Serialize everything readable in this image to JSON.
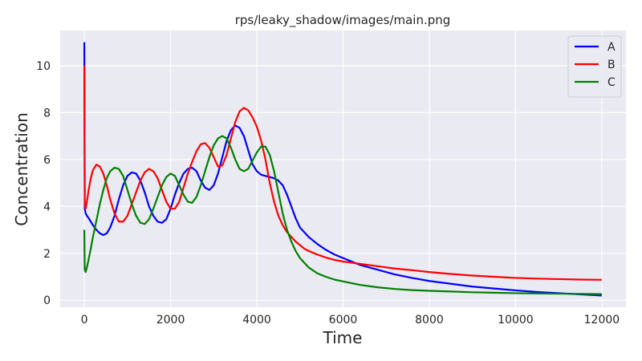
{
  "chart_data": {
    "type": "line",
    "title": "rps/leaky_shadow/images/main.png",
    "xlabel": "Time",
    "ylabel": "Concentration",
    "xlim": [
      -560,
      12560
    ],
    "ylim": [
      -0.3,
      11.5
    ],
    "xticks": [
      0,
      2000,
      4000,
      6000,
      8000,
      10000,
      12000
    ],
    "xtick_labels": [
      "0",
      "2000",
      "4000",
      "6000",
      "8000",
      "10000",
      "12000"
    ],
    "yticks": [
      0,
      2,
      4,
      6,
      8,
      10
    ],
    "ytick_labels": [
      "0",
      "2",
      "4",
      "6",
      "8",
      "10"
    ],
    "grid": true,
    "legend": "top-right",
    "series": [
      {
        "name": "A",
        "color": "#0000ff",
        "x": [
          0,
          10,
          30,
          60,
          100,
          150,
          200,
          280,
          360,
          440,
          520,
          600,
          700,
          800,
          900,
          1000,
          1100,
          1200,
          1300,
          1400,
          1500,
          1600,
          1700,
          1800,
          1900,
          2000,
          2100,
          2200,
          2300,
          2400,
          2500,
          2600,
          2700,
          2800,
          2900,
          3000,
          3100,
          3200,
          3300,
          3400,
          3500,
          3600,
          3700,
          3800,
          3850,
          3900,
          4000,
          4100,
          4200,
          4300,
          4400,
          4500,
          4600,
          4700,
          4800,
          4900,
          5000,
          5100,
          5200,
          5400,
          5600,
          5800,
          6000,
          6400,
          6800,
          7200,
          7600,
          8000,
          8500,
          9000,
          9500,
          10000,
          10500,
          11000,
          11500,
          12000
        ],
        "y": [
          11.0,
          3.9,
          3.7,
          3.6,
          3.5,
          3.35,
          3.2,
          3.0,
          2.85,
          2.78,
          2.85,
          3.1,
          3.6,
          4.3,
          4.9,
          5.3,
          5.45,
          5.4,
          5.1,
          4.6,
          4.0,
          3.6,
          3.35,
          3.3,
          3.45,
          3.9,
          4.5,
          5.0,
          5.4,
          5.6,
          5.65,
          5.5,
          5.1,
          4.8,
          4.7,
          4.9,
          5.4,
          6.1,
          6.8,
          7.25,
          7.45,
          7.35,
          7.0,
          6.4,
          6.1,
          5.8,
          5.5,
          5.35,
          5.3,
          5.25,
          5.2,
          5.1,
          4.9,
          4.5,
          4.0,
          3.5,
          3.1,
          2.9,
          2.7,
          2.4,
          2.15,
          1.95,
          1.8,
          1.5,
          1.3,
          1.1,
          0.95,
          0.82,
          0.7,
          0.58,
          0.5,
          0.42,
          0.35,
          0.3,
          0.25,
          0.2
        ]
      },
      {
        "name": "B",
        "color": "#ff0000",
        "x": [
          0,
          10,
          30,
          60,
          100,
          150,
          200,
          280,
          360,
          440,
          520,
          600,
          700,
          800,
          900,
          1000,
          1100,
          1200,
          1300,
          1400,
          1500,
          1600,
          1700,
          1800,
          1900,
          2000,
          2100,
          2200,
          2300,
          2400,
          2500,
          2600,
          2700,
          2800,
          2900,
          3000,
          3100,
          3200,
          3300,
          3400,
          3500,
          3600,
          3700,
          3800,
          3900,
          4000,
          4100,
          4200,
          4250,
          4300,
          4400,
          4500,
          4600,
          4700,
          4800,
          4900,
          5000,
          5100,
          5200,
          5400,
          5600,
          5800,
          6000,
          6400,
          6800,
          7200,
          7600,
          8000,
          8500,
          9000,
          9500,
          10000,
          10500,
          11000,
          11500,
          12000
        ],
        "y": [
          10.0,
          4.2,
          3.9,
          4.2,
          4.7,
          5.2,
          5.55,
          5.78,
          5.7,
          5.4,
          4.9,
          4.3,
          3.7,
          3.35,
          3.35,
          3.6,
          4.1,
          4.6,
          5.1,
          5.45,
          5.6,
          5.5,
          5.2,
          4.7,
          4.2,
          3.9,
          3.9,
          4.2,
          4.8,
          5.4,
          5.9,
          6.35,
          6.65,
          6.7,
          6.5,
          6.1,
          5.7,
          5.75,
          6.2,
          6.9,
          7.6,
          8.05,
          8.2,
          8.1,
          7.8,
          7.4,
          6.8,
          6.0,
          5.5,
          5.0,
          4.2,
          3.6,
          3.2,
          2.9,
          2.7,
          2.5,
          2.35,
          2.2,
          2.1,
          1.95,
          1.82,
          1.72,
          1.65,
          1.55,
          1.45,
          1.35,
          1.28,
          1.2,
          1.12,
          1.05,
          1.0,
          0.95,
          0.92,
          0.9,
          0.88,
          0.87
        ]
      },
      {
        "name": "C",
        "color": "#008000",
        "x": [
          0,
          10,
          30,
          60,
          100,
          150,
          200,
          280,
          360,
          440,
          520,
          600,
          700,
          800,
          900,
          1000,
          1100,
          1200,
          1300,
          1400,
          1500,
          1600,
          1700,
          1800,
          1900,
          2000,
          2100,
          2200,
          2300,
          2400,
          2500,
          2600,
          2700,
          2800,
          2900,
          3000,
          3100,
          3200,
          3300,
          3400,
          3500,
          3600,
          3700,
          3800,
          3900,
          4000,
          4100,
          4200,
          4300,
          4400,
          4500,
          4600,
          4700,
          4800,
          4900,
          5000,
          5100,
          5200,
          5400,
          5600,
          5800,
          6000,
          6400,
          6800,
          7200,
          7600,
          8000,
          8500,
          9000,
          9500,
          10000,
          10500,
          11000,
          11500,
          12000
        ],
        "y": [
          3.0,
          1.3,
          1.2,
          1.4,
          1.75,
          2.2,
          2.7,
          3.4,
          4.1,
          4.7,
          5.2,
          5.5,
          5.65,
          5.6,
          5.3,
          4.7,
          4.1,
          3.6,
          3.3,
          3.25,
          3.45,
          3.9,
          4.4,
          4.9,
          5.25,
          5.4,
          5.3,
          4.9,
          4.5,
          4.2,
          4.15,
          4.4,
          4.9,
          5.5,
          6.1,
          6.6,
          6.9,
          7.0,
          6.9,
          6.5,
          6.0,
          5.6,
          5.5,
          5.6,
          5.95,
          6.3,
          6.55,
          6.55,
          6.2,
          5.5,
          4.6,
          3.7,
          3.0,
          2.5,
          2.1,
          1.8,
          1.6,
          1.4,
          1.15,
          1.0,
          0.88,
          0.8,
          0.65,
          0.55,
          0.48,
          0.43,
          0.4,
          0.37,
          0.34,
          0.32,
          0.3,
          0.29,
          0.28,
          0.27,
          0.26
        ]
      }
    ]
  }
}
